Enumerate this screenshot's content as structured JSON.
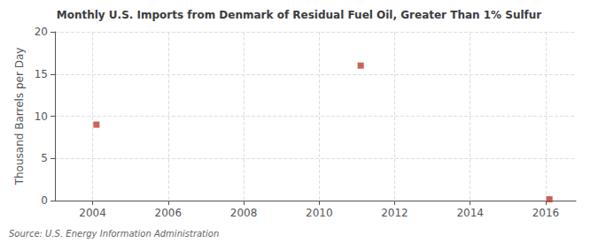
{
  "chart_data": {
    "type": "scatter",
    "title": "Monthly U.S. Imports from Denmark of Residual Fuel Oil, Greater Than 1% Sulfur",
    "ylabel": "Thousand Barrels per Day",
    "annotations": [
      "Source: U.S. Energy Information Administration"
    ],
    "x": [
      2004.1,
      2011.1,
      2016.1
    ],
    "values": [
      9.0,
      16.0,
      0.15
    ],
    "color": "#C0392B",
    "marker": "square",
    "xlim": [
      2003.0,
      2016.8
    ],
    "ylim": [
      0,
      20
    ],
    "xticks": [
      2004,
      2006,
      2008,
      2010,
      2012,
      2014,
      2016
    ],
    "yticks": [
      0,
      5,
      10,
      15,
      20
    ],
    "grid": true
  }
}
